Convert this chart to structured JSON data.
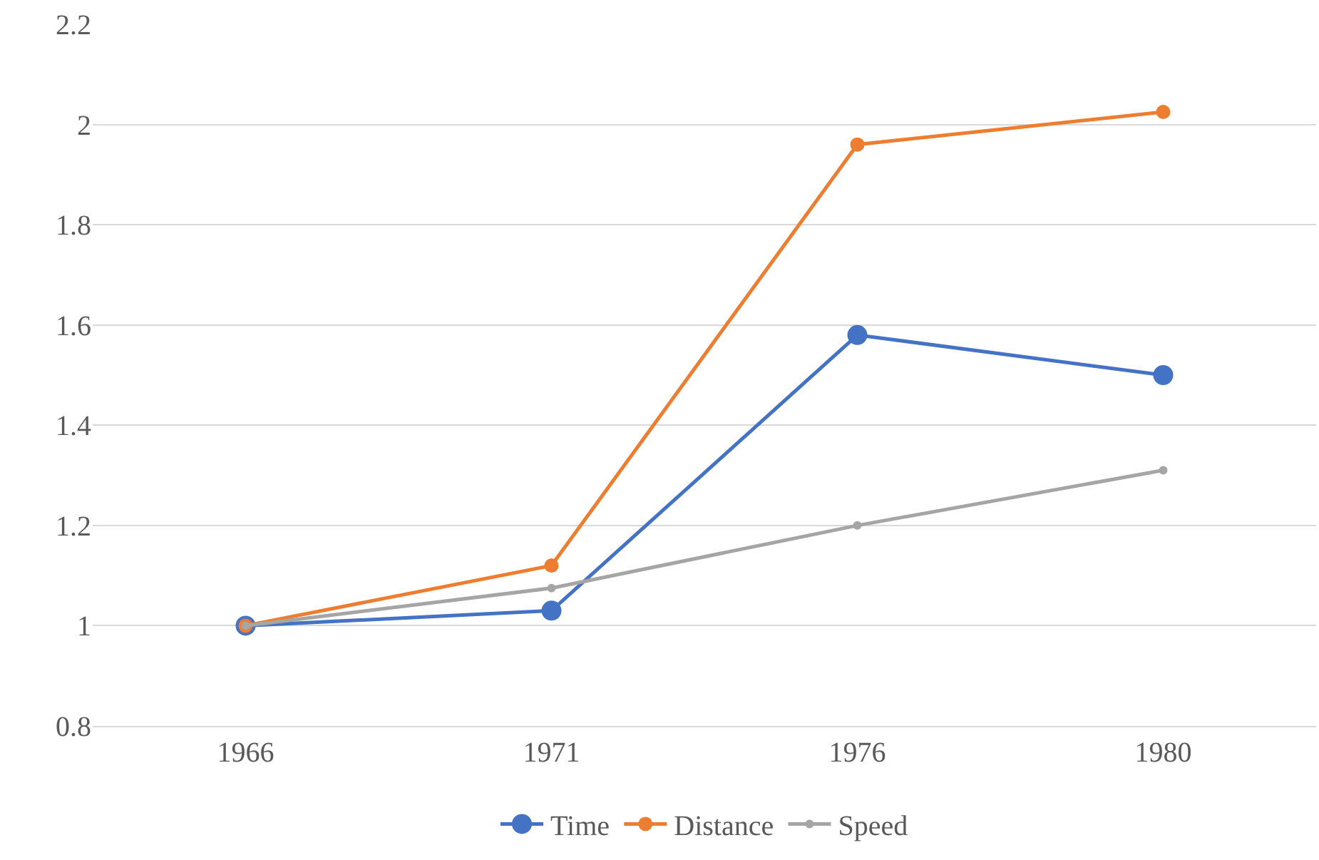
{
  "chart_data": {
    "type": "line",
    "categories": [
      "1966",
      "1971",
      "1976",
      "1980"
    ],
    "series": [
      {
        "name": "Time",
        "color": "#4472c4",
        "values": [
          1.0,
          1.03,
          1.58,
          1.5
        ]
      },
      {
        "name": "Distance",
        "color": "#ed7d31",
        "values": [
          1.0,
          1.12,
          1.96,
          2.025
        ]
      },
      {
        "name": "Speed",
        "color": "#a5a5a5",
        "values": [
          1.0,
          1.075,
          1.2,
          1.31
        ]
      }
    ],
    "ylim": [
      0.8,
      2.2
    ],
    "yticks": [
      0.8,
      1,
      1.2,
      1.4,
      1.6,
      1.8,
      2,
      2.2
    ],
    "grid": "y",
    "legend": "bottom",
    "marker": "circle",
    "line_style": "solid"
  }
}
